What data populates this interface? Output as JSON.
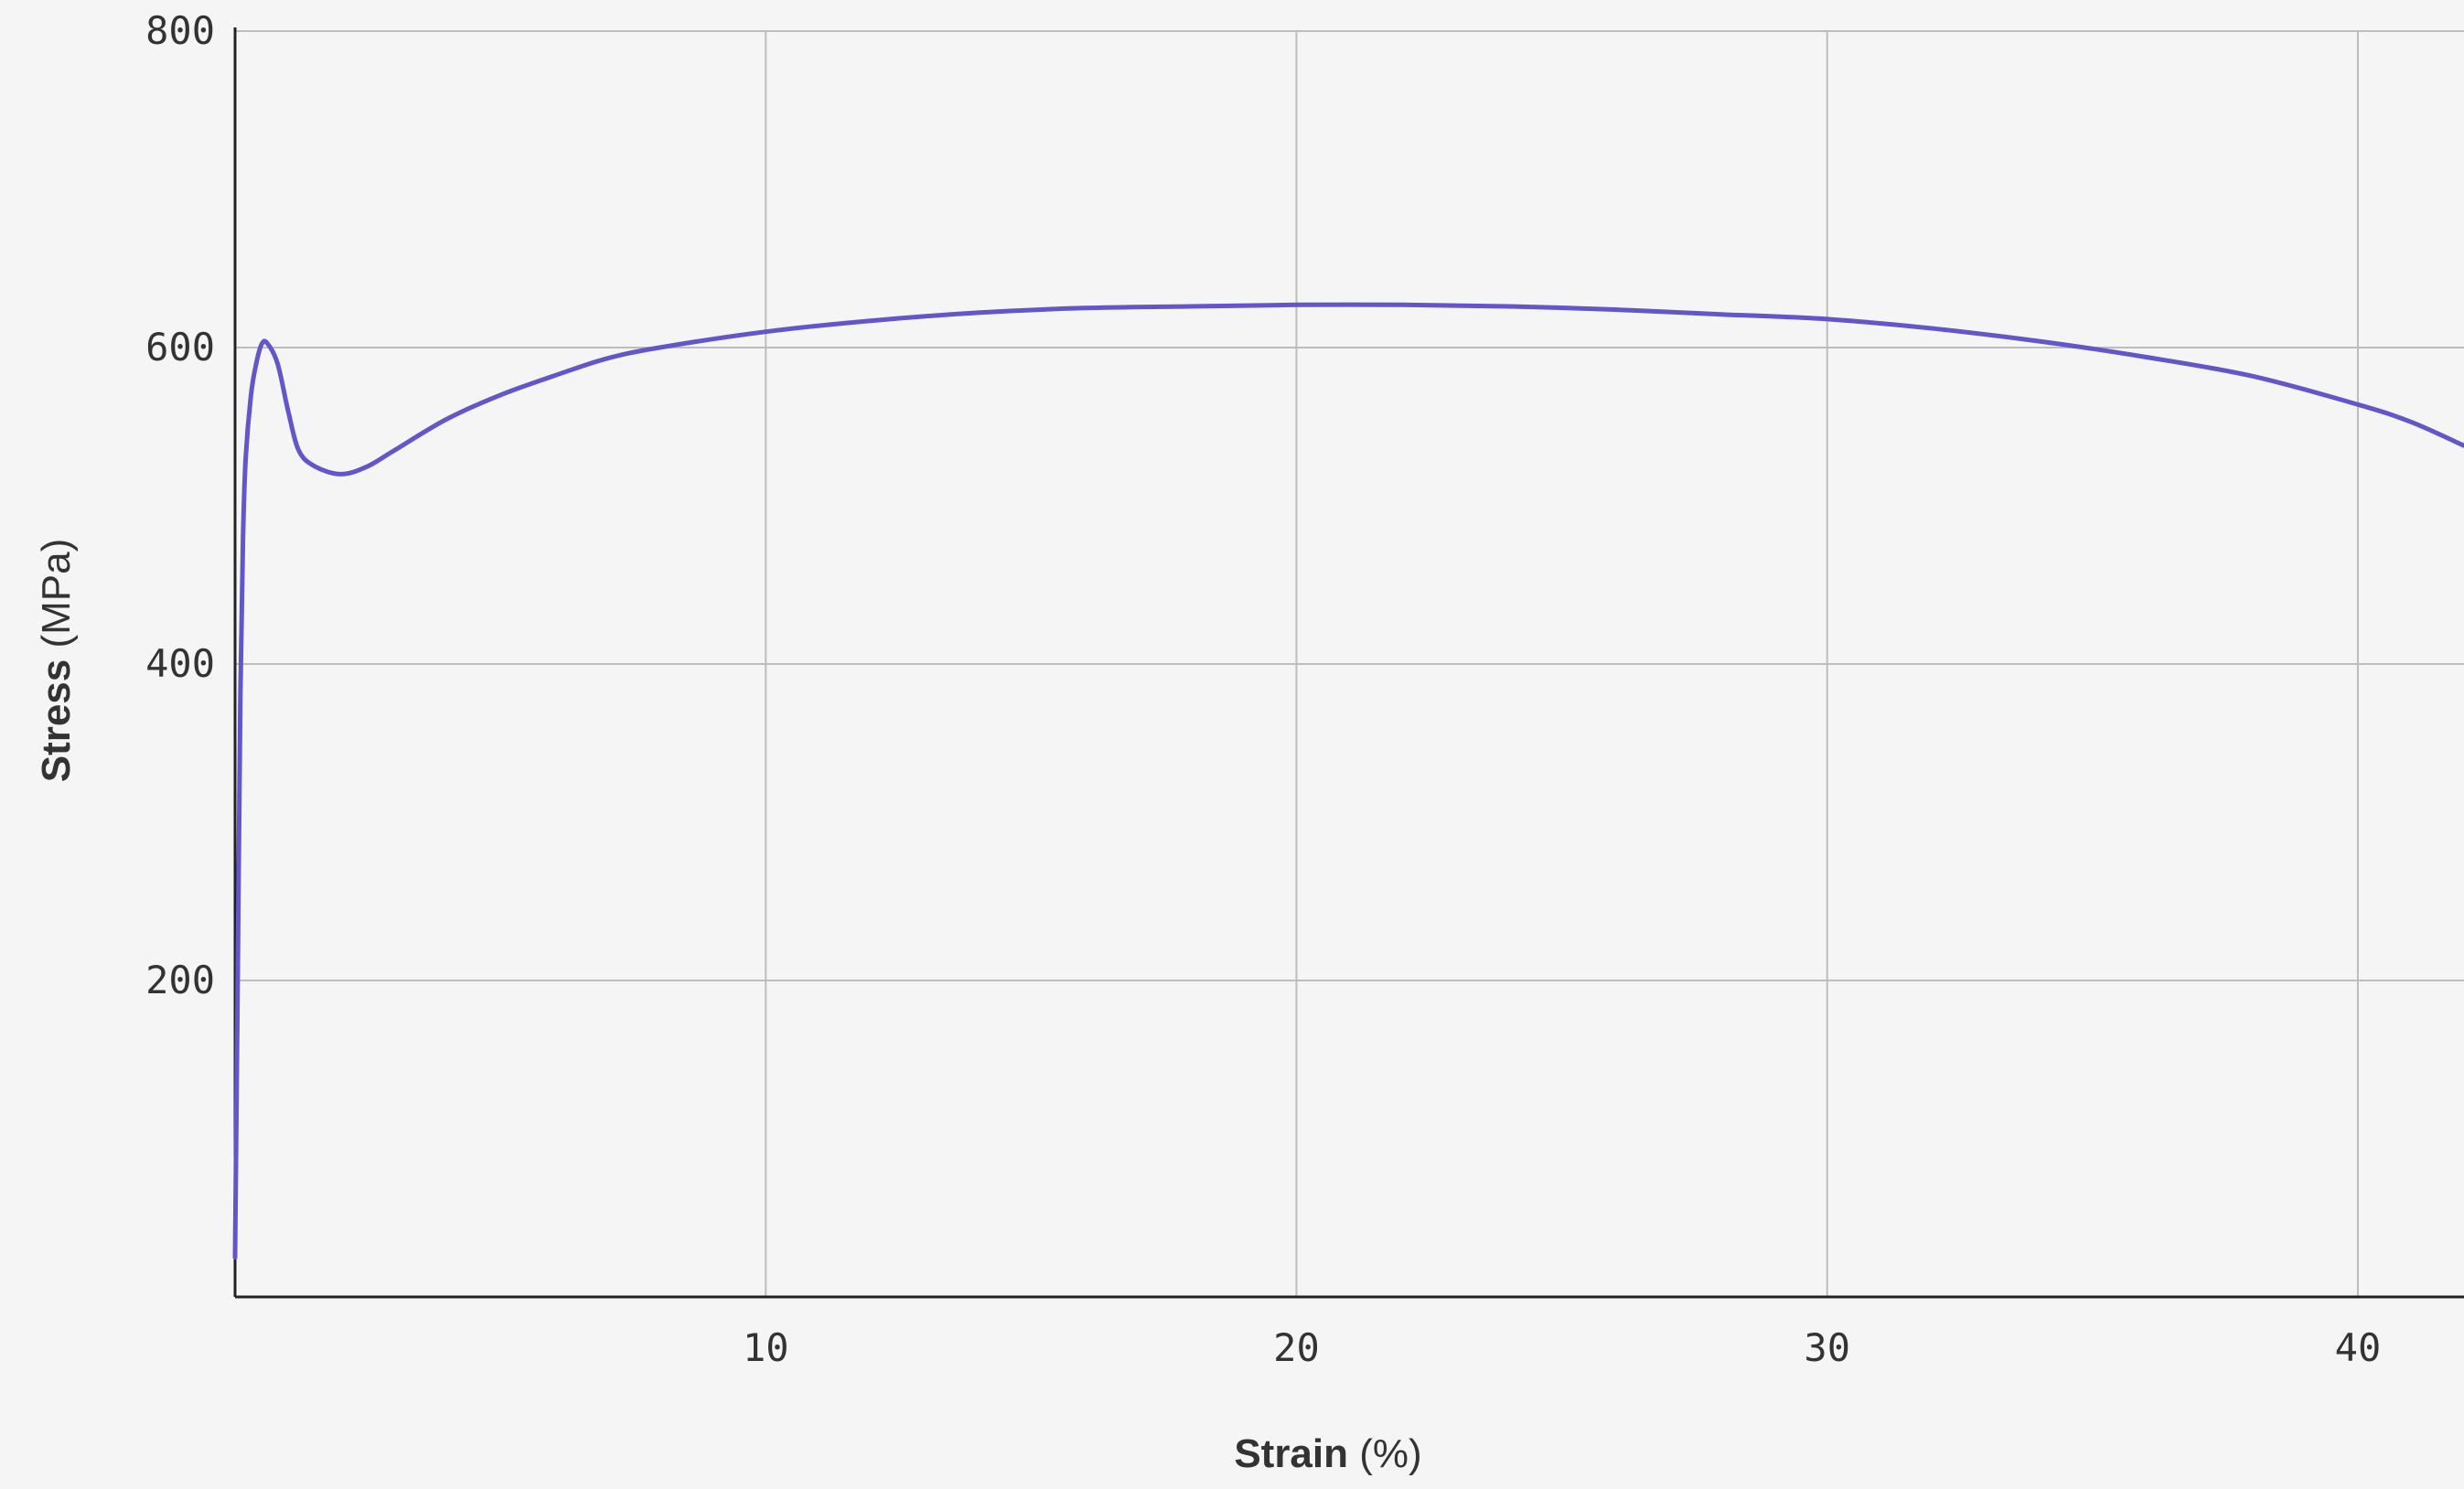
{
  "chart_data": {
    "type": "line",
    "title": "",
    "xlabel": {
      "bold": "Strain",
      "unit": "(%)"
    },
    "ylabel": {
      "bold": "Stress",
      "unit": "(MPa)"
    },
    "xlim": [
      0,
      42
    ],
    "ylim": [
      0,
      800
    ],
    "x_ticks": [
      10,
      20,
      30,
      40
    ],
    "x_tick_labels": [
      "10",
      "20",
      "30",
      "40"
    ],
    "y_ticks": [
      200,
      400,
      600,
      800
    ],
    "y_tick_labels": [
      "200",
      "400",
      "600",
      "800"
    ],
    "grid": true,
    "legend": "none",
    "colors": {
      "line": "#6256c8",
      "grid": "#bdbdbd",
      "axis": "#222222",
      "background": "#f5f5f5"
    },
    "series": [
      {
        "x": [
          0,
          0.05,
          0.1,
          0.15,
          0.2,
          0.3,
          0.4,
          0.5,
          0.6,
          0.8,
          1.0,
          1.2,
          1.5,
          2.0,
          2.5,
          3.0,
          4.0,
          5.0,
          6.0,
          7.0,
          8.0,
          10,
          12,
          14,
          16,
          18,
          20,
          22,
          24,
          26,
          28,
          30,
          32,
          34,
          36,
          38,
          40,
          41,
          42
        ],
        "y": [
          25,
          200,
          380,
          480,
          530,
          570,
          590,
          602,
          603,
          590,
          560,
          535,
          525,
          520,
          525,
          535,
          555,
          570,
          582,
          593,
          600,
          610,
          617,
          622,
          625,
          626,
          627,
          627,
          626,
          624,
          621,
          618,
          612,
          604,
          594,
          582,
          564,
          553,
          538
        ]
      }
    ]
  }
}
